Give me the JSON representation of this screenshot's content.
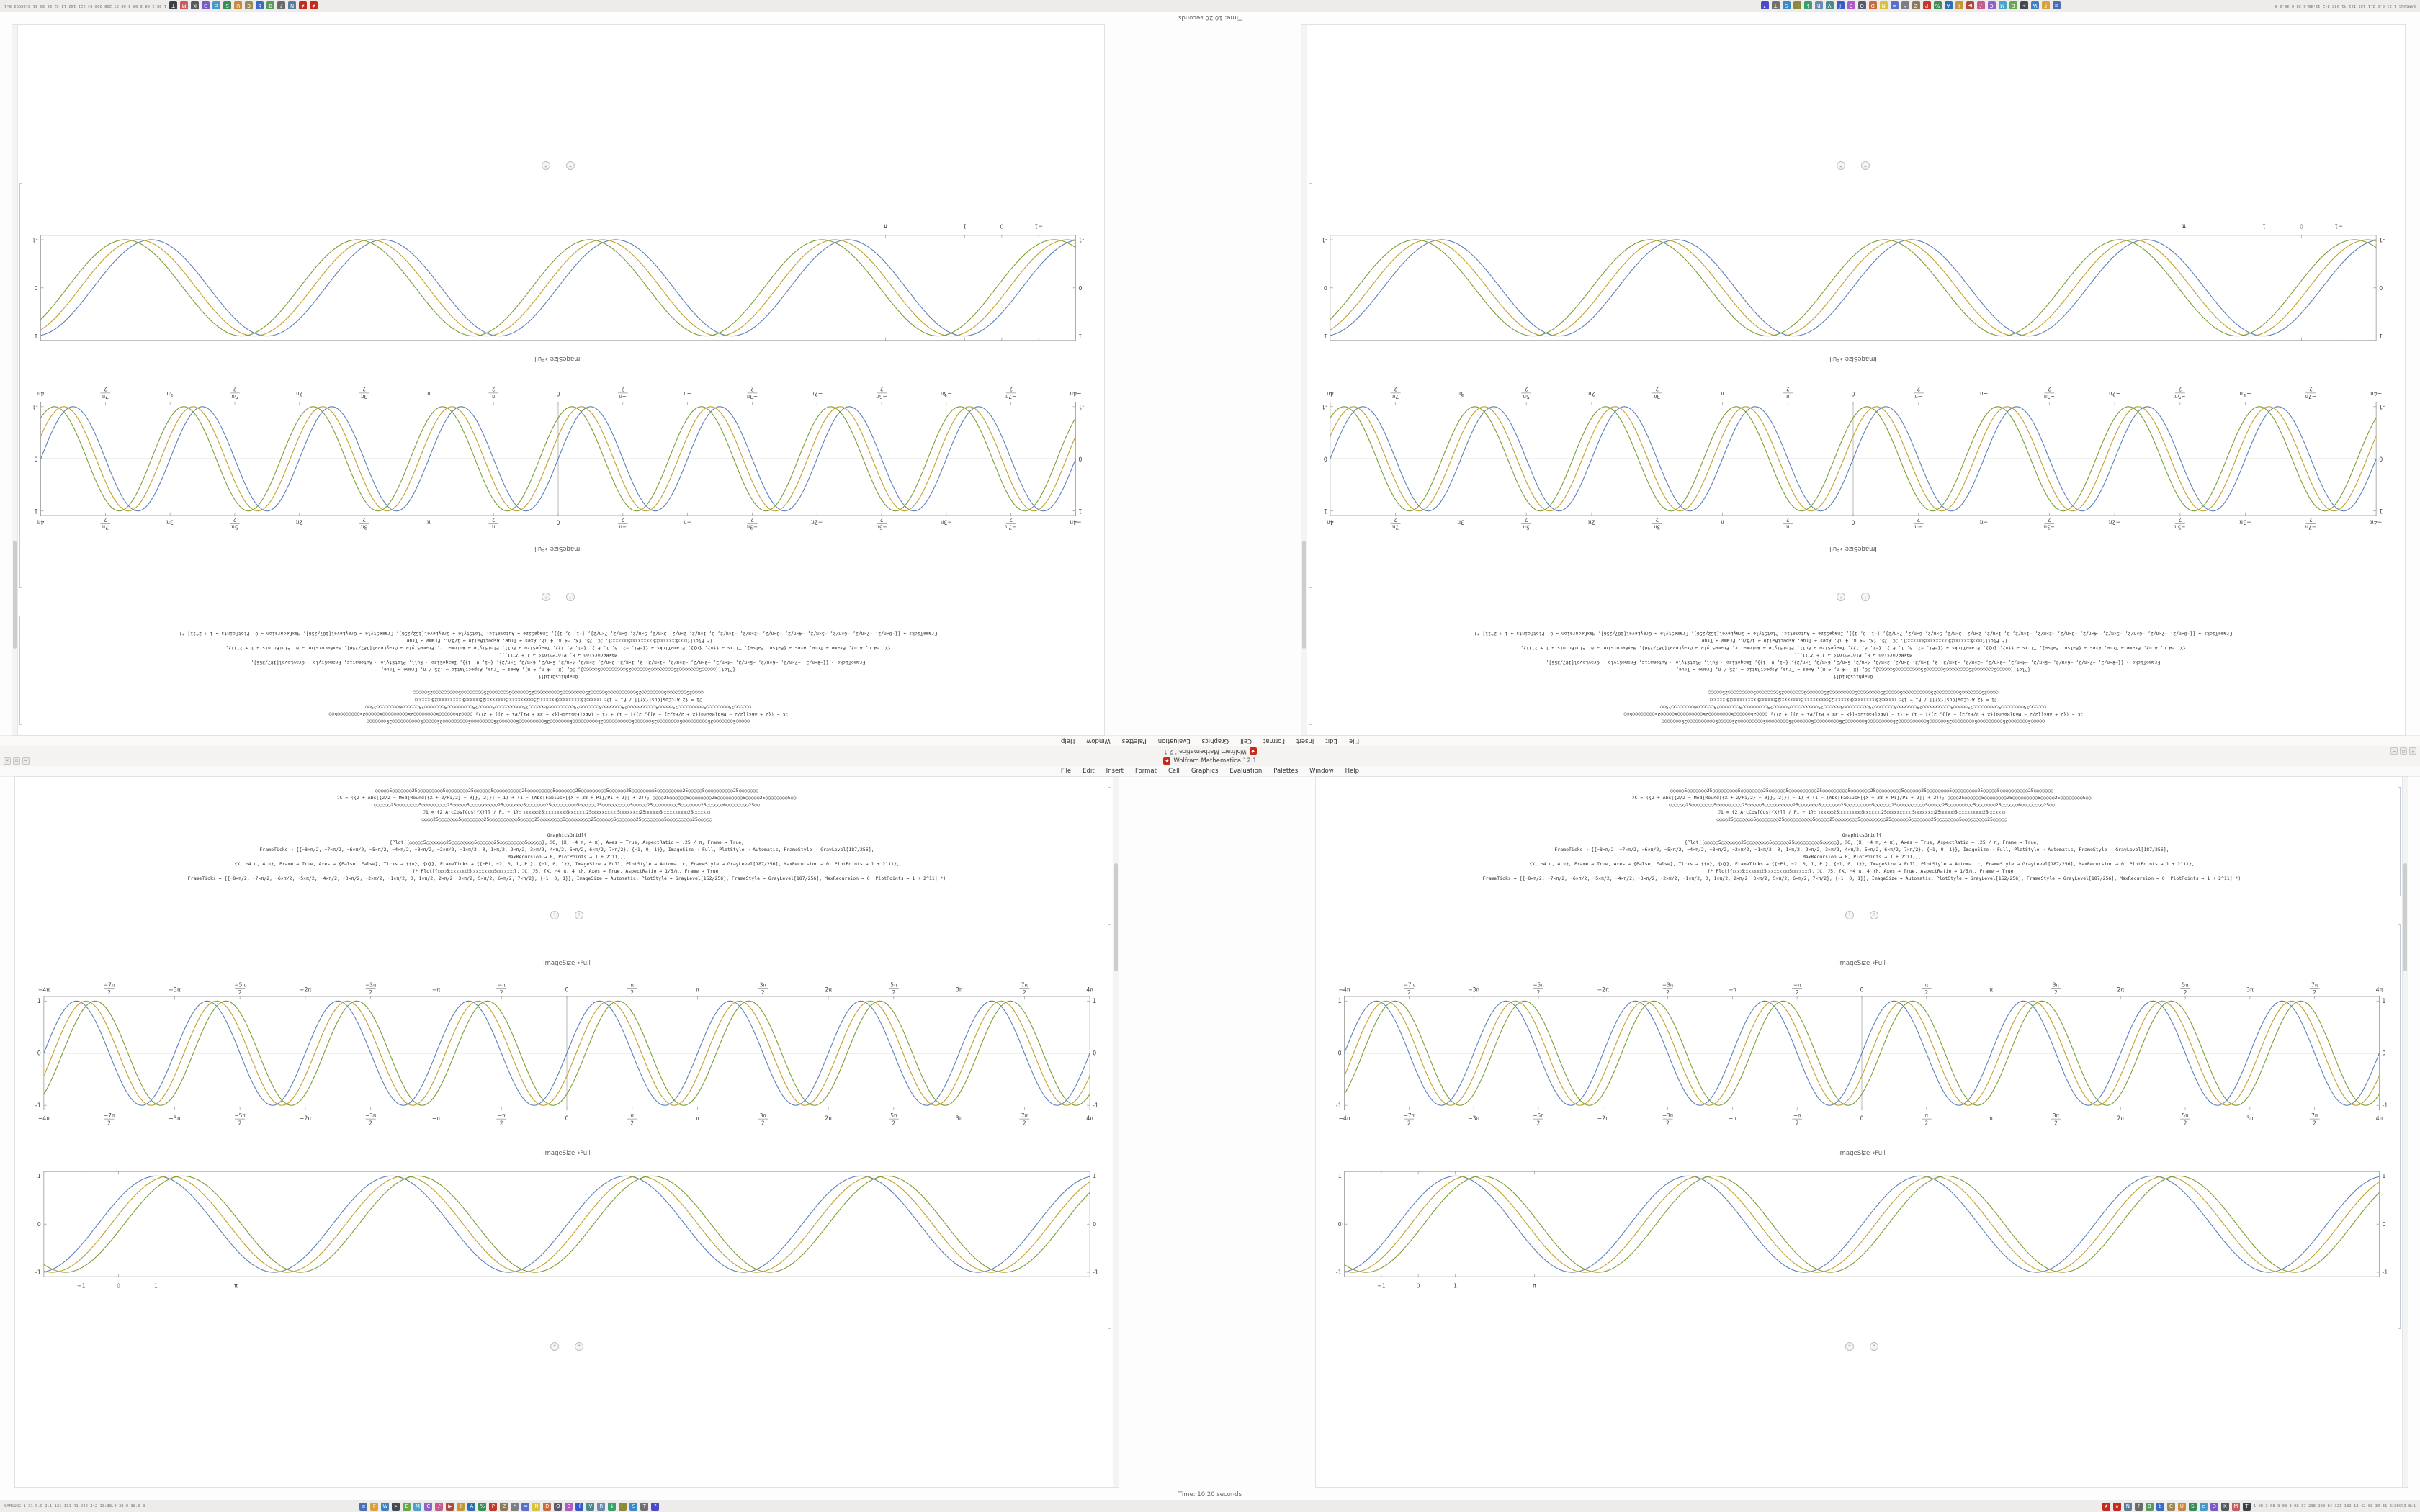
{
  "app": {
    "window_title": "Wolfram Mathematica 12.1",
    "app_icon_glyph": "★",
    "menu_items": [
      "File",
      "Edit",
      "Insert",
      "Format",
      "Cell",
      "Graphics",
      "Evaluation",
      "Palettes",
      "Window",
      "Help"
    ],
    "window_controls": [
      {
        "name": "close",
        "glyph": "×"
      },
      {
        "name": "maximize",
        "glyph": "□"
      },
      {
        "name": "minimize",
        "glyph": "–"
      }
    ],
    "status_text": "Time: 10.20 seconds"
  },
  "notebook": {
    "output_label": "ImageSize→Full",
    "cell_insert_glyph": "+",
    "code_block_a": [
      "○○○○○5○○○○○○○25○○○○○○○○○5○○○○○○○○25○○○○○○5○○○○○○○○○○25○○○○○○○○○5○○○○○○○25○○○○○○○○○5○○○○○○25○○○○○○○○5○○○○○○○○○25○○○○○5○○○○○○○○○○25○○○○○○○",
      "ℐC = ({2 + Abs[{2/2 − Mod[Round[{X + 2/Pi/2} − 0]}, 2]}] − 1) + (1 − (Abs[FabiusF[{X + 38 + Pi}/Pi + 2]] + 2));  ○○○○25○○○○○○5○○○○○○○○25○○○○○○○○○5○○○○○25○○○○○○○○5○○",
      "○○○○○○25○○○○○○○○5○○○○○○○○○25○○○○○5○○○○○○○○○○25○○○○○○○5○○○○○○○25○○○○○○○○○5○○○○○○25○○○○○○○○○○5○○○○○25○○○○○○○○○5○○○○○○○25○○○○○○6○○○○○○○○25○○",
      "ℐ1 = {2 ArcCos[Cos[{X}]] / Pi − 1};  ○○○○○25○○○○○○○○5○○○○○○25○○○○○○○○○5○○○○○○○25○○○○○5○○○○○○○○○25○○○○○○",
      "○○○○25○○○○○○○5○○○○○○○○25○○○○○○○○○○5○○○○○25○○○○○○○○5○○○○○○○○○25○○○○○○6○○○○○○○25○○○○○○○○5○○○○○○○○○25○○○○○"
    ],
    "code_block_b": [
      "GraphicsGrid[{",
      "{Plot[{○○○○○5○○○○○○○25○○○○○○○○5○○○○○○25○○○○○○○○○5○○○○○}, ℐC, {X, −4 π, 4 π}, Axes → True, AspectRatio → .25 / π, Frame → True,",
      "FrameTicks → {{−8×π/2, −7×π/2, −6×π/2, −5×π/2, −4×π/2, −3×π/2, −2×π/2, −1×π/2, 0, 1×π/2, 2×π/2, 3×π/2, 4×π/2, 5×π/2, 6×π/2, 7×π/2}, {−1, 0, 1}}, ImageSize → Full, PlotStyle → Automatic, FrameStyle → GrayLevel[187/256],",
      "MaxRecursion → 0, PlotPoints → 1 + 2^11]],",
      "{X, −4 π, 4 π}, Frame → True, Axes → {False, False}, Ticks → {{π}, {π}}, FrameTicks → {{−Pi, −2, 0, 1, Pi}, {−1, 0, 1}}, ImageSize → Full, PlotStyle → Automatic, FrameStyle → GrayLevel[187/256], MaxRecursion → 0, PlotPoints → 1 + 2^11},",
      "(* Plot[{○○○5○○○○○○25○○○○○○○○5○○○○○○}, ℐC, ℐ5, {X, −4 π, 4 π}, Axes → True, AspectRatio → 1/5/π, Frame → True,",
      "FrameTicks → {{−8×π/2, −7×π/2, −6×π/2, −5×π/2, −4×π/2, −3×π/2, −2×π/2, −1×π/2, 0, 1×π/2, 2×π/2, 3×π/2, 5×π/2, 6×π/2, 7×π/2}, {−1, 0, 1}}, ImageSize → Automatic, PlotStyle → GrayLevel[152/256], FrameStyle → GrayLevel[187/256], MaxRecursion → 0, PlotPoints → 1 + 2^11] *)"
    ]
  },
  "taskbar": {
    "left_stats": "SAMSUNG 1 31 0.9 2.1 121 131 41 942 342 13:38.0 38.0 38.0 8",
    "right_stats": "1-08-3-08-3-08-3-08 37 298 298 84 321 132 13 42 08 30 31 8108993 8:1",
    "app_icons": [
      {
        "name": "launcher",
        "color": "#4a6fb0",
        "glyph": "≡"
      },
      {
        "name": "files",
        "color": "#d9a13a",
        "glyph": "F"
      },
      {
        "name": "web-browser",
        "color": "#3f7fbf",
        "glyph": "W"
      },
      {
        "name": "terminal",
        "color": "#44484d",
        "glyph": ">"
      },
      {
        "name": "text-editor",
        "color": "#6aa84f",
        "glyph": "E"
      },
      {
        "name": "mail",
        "color": "#4aa3c8",
        "glyph": "M"
      },
      {
        "name": "chat",
        "color": "#8e63c8",
        "glyph": "C"
      },
      {
        "name": "music-player",
        "color": "#c85a8e",
        "glyph": "♪"
      },
      {
        "name": "video-player",
        "color": "#b04a3a",
        "glyph": "▶"
      },
      {
        "name": "image-viewer",
        "color": "#c8963a",
        "glyph": "I"
      },
      {
        "name": "office-writer",
        "color": "#2e6fb0",
        "glyph": "A"
      },
      {
        "name": "office-calc",
        "color": "#3e8e5a",
        "glyph": "%"
      },
      {
        "name": "pdf-viewer",
        "color": "#c0392b",
        "glyph": "P"
      },
      {
        "name": "archive-manager",
        "color": "#8a7a5a",
        "glyph": "Z"
      },
      {
        "name": "settings",
        "color": "#7a7f85",
        "glyph": "*"
      },
      {
        "name": "calculator",
        "color": "#5a6fc8",
        "glyph": "="
      },
      {
        "name": "notes",
        "color": "#d9c23a",
        "glyph": "N"
      },
      {
        "name": "calendar",
        "color": "#c86a3a",
        "glyph": "D"
      },
      {
        "name": "camera",
        "color": "#5a5a6e",
        "glyph": "O"
      },
      {
        "name": "paint",
        "color": "#b05ac8",
        "glyph": "B"
      },
      {
        "name": "ide",
        "color": "#3a5ac8",
        "glyph": "{"
      },
      {
        "name": "vm-manager",
        "color": "#4a8a8a",
        "glyph": "V"
      },
      {
        "name": "remote-desktop",
        "color": "#6a8ab0",
        "glyph": "R"
      },
      {
        "name": "downloads",
        "color": "#3aa06a",
        "glyph": "↓"
      },
      {
        "name": "disk-utility",
        "color": "#8a8a3a",
        "glyph": "H"
      },
      {
        "name": "system-monitor",
        "color": "#3a8ac8",
        "glyph": "S"
      },
      {
        "name": "printer",
        "color": "#707070",
        "glyph": "T"
      },
      {
        "name": "help",
        "color": "#4a4ac8",
        "glyph": "?"
      }
    ],
    "tray_icons": [
      {
        "name": "wolfram-kernel",
        "color": "#c62a1c",
        "glyph": "★"
      },
      {
        "name": "wolfram-frontend",
        "color": "#c62a1c",
        "glyph": "★"
      },
      {
        "name": "network",
        "color": "#5a7a9a",
        "glyph": "N"
      },
      {
        "name": "volume",
        "color": "#6a6a6a",
        "glyph": "♪"
      },
      {
        "name": "battery",
        "color": "#5a9a5a",
        "glyph": "B"
      },
      {
        "name": "bluetooth",
        "color": "#3a6ac8",
        "glyph": "b"
      },
      {
        "name": "clipboard",
        "color": "#9a8a5a",
        "glyph": "C"
      },
      {
        "name": "updates",
        "color": "#c88a3a",
        "glyph": "U"
      },
      {
        "name": "shield",
        "color": "#3a8a5a",
        "glyph": "S"
      },
      {
        "name": "cloud-sync",
        "color": "#4a9ac8",
        "glyph": "c"
      },
      {
        "name": "display",
        "color": "#7a5ac8",
        "glyph": "D"
      },
      {
        "name": "keyboard-layout",
        "color": "#55585c",
        "glyph": "K"
      },
      {
        "name": "messages",
        "color": "#c85a5a",
        "glyph": "M"
      },
      {
        "name": "clock",
        "color": "#3c3f44",
        "glyph": "T"
      }
    ]
  },
  "chart_data": [
    {
      "id": "pi-grid-plot",
      "type": "line",
      "title": "",
      "xlabel": "",
      "ylabel": "",
      "x_range_pi": [
        -4,
        4
      ],
      "ylim": [
        -1.1,
        1.1
      ],
      "frame": true,
      "internal_axes": true,
      "grid": false,
      "legend": "none",
      "x_ticks": [
        {
          "pos": -4,
          "label": "−4π"
        },
        {
          "pos": -3.5,
          "num": "−7π",
          "den": "2"
        },
        {
          "pos": -3,
          "label": "−3π"
        },
        {
          "pos": -2.5,
          "num": "−5π",
          "den": "2"
        },
        {
          "pos": -2,
          "label": "−2π"
        },
        {
          "pos": -1.5,
          "num": "−3π",
          "den": "2"
        },
        {
          "pos": -1,
          "label": "−π"
        },
        {
          "pos": -0.5,
          "num": "−π",
          "den": "2"
        },
        {
          "pos": 0,
          "label": "0"
        },
        {
          "pos": 0.5,
          "num": "π",
          "den": "2"
        },
        {
          "pos": 1,
          "label": "π"
        },
        {
          "pos": 1.5,
          "num": "3π",
          "den": "2"
        },
        {
          "pos": 2,
          "label": "2π"
        },
        {
          "pos": 2.5,
          "num": "5π",
          "den": "2"
        },
        {
          "pos": 3,
          "label": "3π"
        },
        {
          "pos": 3.5,
          "num": "7π",
          "den": "2"
        },
        {
          "pos": 4,
          "label": "4π"
        }
      ],
      "y_ticks": [
        {
          "v": 1,
          "label": "1"
        },
        {
          "v": 0,
          "label": "0"
        },
        {
          "v": -1,
          "label": "-1"
        }
      ],
      "series": [
        {
          "name": "sin-curve-blue",
          "color": "#5e81b5",
          "frequency": 2,
          "phase": 0
        },
        {
          "name": "sin-curve-yellow",
          "color": "#bfa22e",
          "frequency": 2,
          "phase": -0.45
        },
        {
          "name": "sin-curve-green",
          "color": "#7f9d34",
          "frequency": 2,
          "phase": -0.9
        }
      ]
    },
    {
      "id": "simple-frame-plot",
      "type": "line",
      "title": "",
      "xlabel": "",
      "ylabel": "",
      "x_range": [
        -2,
        26
      ],
      "ylim": [
        -1.1,
        1.1
      ],
      "frame": true,
      "internal_axes": false,
      "grid": false,
      "legend": "none",
      "x_ticks": [
        {
          "pos": -1,
          "label": "−1"
        },
        {
          "pos": 0,
          "label": "0"
        },
        {
          "pos": 1,
          "label": "1"
        },
        {
          "pos": 3.14159,
          "label": "π"
        }
      ],
      "y_ticks": [
        {
          "v": 1,
          "label": "1"
        },
        {
          "v": 0,
          "label": "0"
        },
        {
          "v": -1,
          "label": "-1"
        }
      ],
      "series": [
        {
          "name": "sin-curve-blue",
          "color": "#5e81b5",
          "frequency": 1,
          "phase": 0.55
        },
        {
          "name": "sin-curve-yellow",
          "color": "#bfa22e",
          "frequency": 1,
          "phase": 0.2
        },
        {
          "name": "sin-curve-green",
          "color": "#7f9d34",
          "frequency": 1,
          "phase": -0.15
        }
      ]
    }
  ]
}
